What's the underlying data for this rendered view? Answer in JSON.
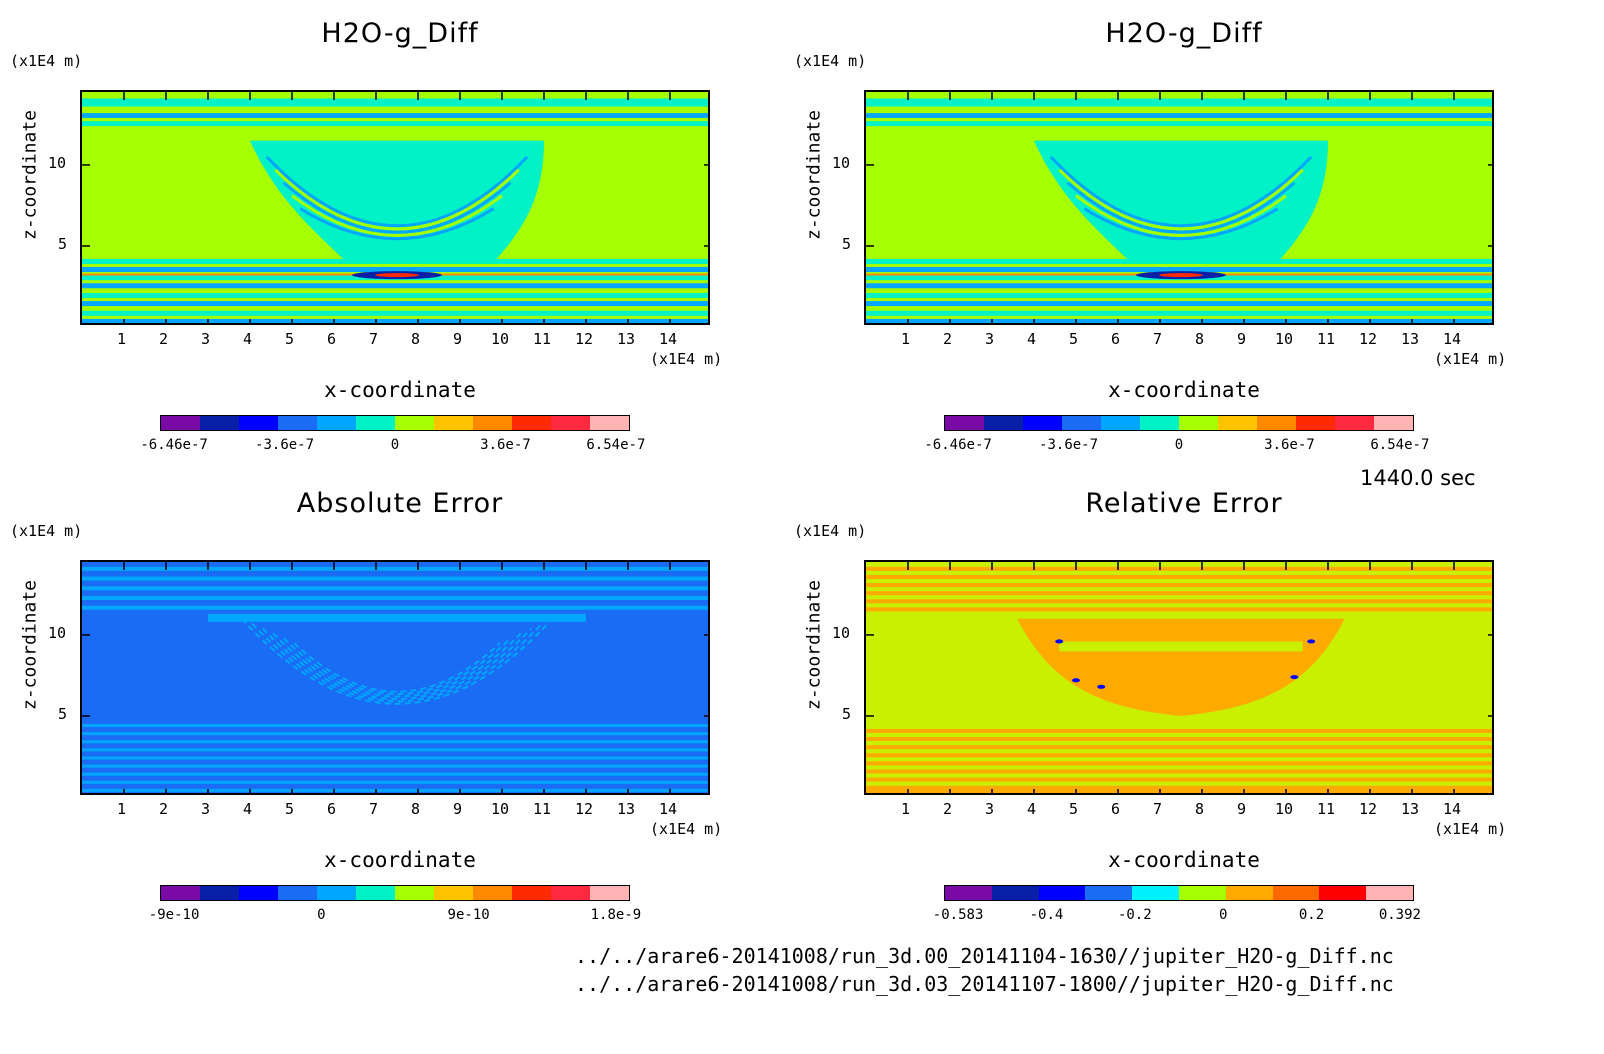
{
  "panels": [
    {
      "id": "p1",
      "title": "H2O-g_Diff",
      "y_unit": "(x1E4 m)",
      "x_unit": "(x1E4 m)",
      "xlabel": "x-coordinate",
      "ylabel": "z-coordinate",
      "colorbar_labels": [
        "-6.46e-7",
        "-3.6e-7",
        "0",
        "3.6e-7",
        "6.54e-7"
      ],
      "colors": [
        "#7a0aa5",
        "#0a1fa8",
        "#0000ff",
        "#1a6cf5",
        "#00a6ff",
        "#00f2c6",
        "#a6ff00",
        "#ffc400",
        "#ff8a00",
        "#ff2a00",
        "#ff2a40",
        "#ffb3b3"
      ]
    },
    {
      "id": "p2",
      "title": "H2O-g_Diff",
      "y_unit": "(x1E4 m)",
      "x_unit": "(x1E4 m)",
      "xlabel": "x-coordinate",
      "ylabel": "z-coordinate",
      "colorbar_labels": [
        "-6.46e-7",
        "-3.6e-7",
        "0",
        "3.6e-7",
        "6.54e-7"
      ],
      "colors": [
        "#7a0aa5",
        "#0a1fa8",
        "#0000ff",
        "#1a6cf5",
        "#00a6ff",
        "#00f2c6",
        "#a6ff00",
        "#ffc400",
        "#ff8a00",
        "#ff2a00",
        "#ff2a40",
        "#ffb3b3"
      ]
    },
    {
      "id": "p3",
      "title": "Absolute Error",
      "y_unit": "(x1E4 m)",
      "x_unit": "(x1E4 m)",
      "xlabel": "x-coordinate",
      "ylabel": "z-coordinate",
      "colorbar_labels": [
        "-9e-10",
        "0",
        "9e-10",
        "1.8e-9"
      ],
      "colors": [
        "#7a0aa5",
        "#0a1fa8",
        "#0000ff",
        "#1a6cf5",
        "#00a6ff",
        "#00f2c6",
        "#a6ff00",
        "#ffc400",
        "#ff8a00",
        "#ff2a00",
        "#ff2a40",
        "#ffb3b3"
      ]
    },
    {
      "id": "p4",
      "title": "Relative Error",
      "y_unit": "(x1E4 m)",
      "x_unit": "(x1E4 m)",
      "xlabel": "x-coordinate",
      "ylabel": "z-coordinate",
      "colorbar_labels": [
        "-0.583",
        "-0.4",
        "-0.2",
        "0",
        "0.2",
        "0.392"
      ],
      "colors": [
        "#7a0aa5",
        "#0a1fa8",
        "#0000ff",
        "#1a6cf5",
        "#00f2ff",
        "#a6ff00",
        "#ffaa00",
        "#ff6a00",
        "#ff0000",
        "#ffb3b3"
      ]
    }
  ],
  "time_label": "1440.0 sec",
  "footer": [
    "../../arare6-20141008/run_3d.00_20141104-1630//jupiter_H2O-g_Diff.nc",
    "../../arare6-20141008/run_3d.03_20141107-1800//jupiter_H2O-g_Diff.nc"
  ],
  "chart_data": [
    {
      "type": "heatmap",
      "title": "H2O-g_Diff",
      "xlabel": "x-coordinate",
      "ylabel": "z-coordinate",
      "x_ticks": [
        1,
        2,
        3,
        4,
        5,
        6,
        7,
        8,
        9,
        10,
        11,
        12,
        13,
        14
      ],
      "y_ticks": [
        5,
        10
      ],
      "xlim": [
        0,
        15
      ],
      "ylim": [
        0,
        14.5
      ],
      "colorbar": [
        "-6.46e-7",
        "-3.6e-7",
        "0",
        "3.6e-7",
        "6.54e-7"
      ],
      "dominant_value": "near 0 (green/cyan)"
    },
    {
      "type": "heatmap",
      "title": "H2O-g_Diff",
      "xlabel": "x-coordinate",
      "ylabel": "z-coordinate",
      "x_ticks": [
        1,
        2,
        3,
        4,
        5,
        6,
        7,
        8,
        9,
        10,
        11,
        12,
        13,
        14
      ],
      "y_ticks": [
        5,
        10
      ],
      "xlim": [
        0,
        15
      ],
      "ylim": [
        0,
        14.5
      ],
      "colorbar": [
        "-6.46e-7",
        "-3.6e-7",
        "0",
        "3.6e-7",
        "6.54e-7"
      ]
    },
    {
      "type": "heatmap",
      "title": "Absolute Error",
      "xlabel": "x-coordinate",
      "ylabel": "z-coordinate",
      "x_ticks": [
        1,
        2,
        3,
        4,
        5,
        6,
        7,
        8,
        9,
        10,
        11,
        12,
        13,
        14
      ],
      "y_ticks": [
        5,
        10
      ],
      "xlim": [
        0,
        15
      ],
      "ylim": [
        0,
        14.5
      ],
      "colorbar": [
        "-9e-10",
        "0",
        "9e-10",
        "1.8e-9"
      ]
    },
    {
      "type": "heatmap",
      "title": "Relative Error",
      "xlabel": "x-coordinate",
      "ylabel": "z-coordinate",
      "x_ticks": [
        1,
        2,
        3,
        4,
        5,
        6,
        7,
        8,
        9,
        10,
        11,
        12,
        13,
        14
      ],
      "y_ticks": [
        5,
        10
      ],
      "xlim": [
        0,
        15
      ],
      "ylim": [
        0,
        14.5
      ],
      "colorbar": [
        "-0.583",
        "-0.4",
        "-0.2",
        "0",
        "0.2",
        "0.392"
      ]
    }
  ]
}
